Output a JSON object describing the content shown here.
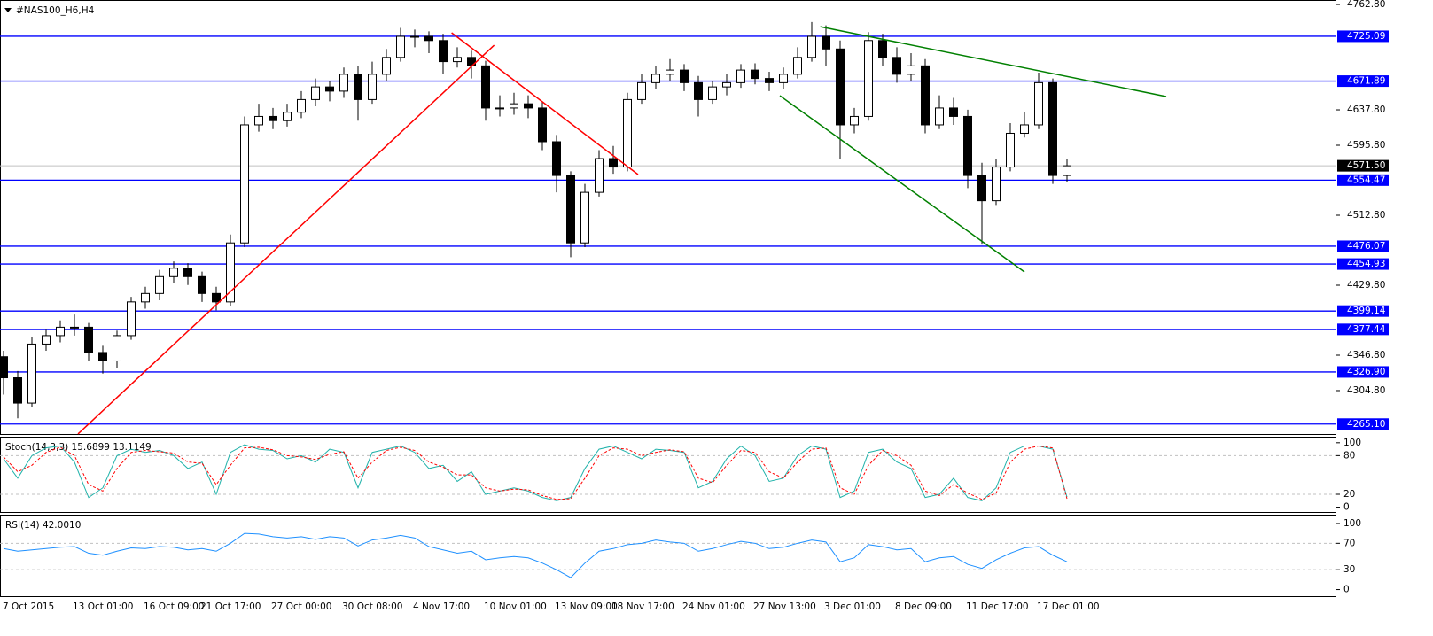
{
  "chart_data": [
    {
      "type": "candlestick",
      "title": "#NAS100_H6,H4",
      "categories": [
        "7 Oct 2015",
        null,
        null,
        null,
        null,
        "13 Oct 01:00",
        null,
        null,
        null,
        null,
        "16 Oct 09:00",
        null,
        null,
        null,
        "21 Oct 17:00",
        null,
        null,
        null,
        null,
        "27 Oct 00:00",
        null,
        null,
        null,
        null,
        "30 Oct 08:00",
        null,
        null,
        null,
        null,
        "4 Nov 17:00",
        null,
        null,
        null,
        null,
        "10 Nov 01:00",
        null,
        null,
        null,
        null,
        "13 Nov 09:00",
        null,
        null,
        null,
        "18 Nov 17:00",
        null,
        null,
        null,
        null,
        "24 Nov 01:00",
        null,
        null,
        null,
        null,
        "27 Nov 13:00",
        null,
        null,
        null,
        null,
        "3 Dec 01:00",
        null,
        null,
        null,
        null,
        "8 Dec 09:00",
        null,
        null,
        null,
        null,
        "11 Dec 17:00",
        null,
        null,
        null,
        null,
        "17 Dec 01:00",
        null,
        null
      ],
      "open": [
        4345,
        4320,
        4290,
        4360,
        4370,
        4380,
        4380,
        4350,
        4340,
        4370,
        4410,
        4420,
        4440,
        4450,
        4440,
        4420,
        4410,
        4480,
        4620,
        4630,
        4625,
        4635,
        4650,
        4665,
        4660,
        4680,
        4650,
        4680,
        4700,
        4725,
        4725,
        4720,
        4695,
        4700,
        4690,
        4640,
        4640,
        4645,
        4640,
        4600,
        4560,
        4480,
        4540,
        4580,
        4570,
        4650,
        4670,
        4680,
        4685,
        4670,
        4650,
        4665,
        4670,
        4685,
        4675,
        4670,
        4680,
        4700,
        4725,
        4710,
        4620,
        4630,
        4720,
        4700,
        4680,
        4690,
        4620,
        4640,
        4630,
        4560,
        4530,
        4570,
        4610,
        4620,
        4670,
        4560
      ],
      "high": [
        4352,
        4328,
        4368,
        4378,
        4388,
        4395,
        4385,
        4358,
        4376,
        4416,
        4428,
        4448,
        4458,
        4456,
        4446,
        4428,
        4490,
        4630,
        4645,
        4640,
        4645,
        4660,
        4675,
        4672,
        4688,
        4690,
        4695,
        4710,
        4735,
        4733,
        4731,
        4728,
        4712,
        4708,
        4696,
        4655,
        4658,
        4655,
        4648,
        4608,
        4565,
        4550,
        4590,
        4595,
        4658,
        4680,
        4690,
        4698,
        4692,
        4678,
        4672,
        4680,
        4692,
        4693,
        4683,
        4688,
        4712,
        4742,
        4738,
        4720,
        4640,
        4730,
        4728,
        4712,
        4705,
        4698,
        4655,
        4652,
        4638,
        4575,
        4580,
        4622,
        4635,
        4682,
        4675,
        4580
      ],
      "low": [
        4300,
        4272,
        4285,
        4352,
        4362,
        4370,
        4340,
        4325,
        4332,
        4365,
        4402,
        4412,
        4432,
        4430,
        4410,
        4400,
        4405,
        4475,
        4612,
        4615,
        4618,
        4628,
        4642,
        4648,
        4652,
        4625,
        4645,
        4672,
        4695,
        4712,
        4705,
        4680,
        4688,
        4675,
        4625,
        4630,
        4632,
        4628,
        4590,
        4540,
        4463,
        4475,
        4535,
        4562,
        4565,
        4645,
        4662,
        4672,
        4660,
        4630,
        4645,
        4655,
        4664,
        4668,
        4660,
        4662,
        4675,
        4695,
        4690,
        4580,
        4610,
        4625,
        4690,
        4670,
        4672,
        4610,
        4615,
        4620,
        4545,
        4478,
        4525,
        4565,
        4605,
        4615,
        4550,
        4552
      ],
      "close": [
        4320,
        4290,
        4360,
        4370,
        4380,
        4380,
        4350,
        4340,
        4370,
        4410,
        4420,
        4440,
        4450,
        4440,
        4420,
        4410,
        4480,
        4620,
        4630,
        4625,
        4635,
        4650,
        4665,
        4660,
        4680,
        4650,
        4680,
        4700,
        4725,
        4725,
        4720,
        4695,
        4700,
        4690,
        4640,
        4640,
        4645,
        4640,
        4600,
        4560,
        4480,
        4540,
        4580,
        4570,
        4650,
        4670,
        4680,
        4685,
        4670,
        4650,
        4665,
        4670,
        4685,
        4675,
        4670,
        4680,
        4700,
        4725,
        4710,
        4620,
        4630,
        4720,
        4700,
        4680,
        4690,
        4620,
        4640,
        4630,
        4560,
        4530,
        4570,
        4610,
        4620,
        4670,
        4560,
        4571.5
      ],
      "ylim": [
        4253.3,
        4768.1
      ],
      "yticks": [
        {
          "value": 4762.8,
          "label": "4762.80"
        },
        {
          "value": 4637.8,
          "label": "4637.80"
        },
        {
          "value": 4595.8,
          "label": "4595.80"
        },
        {
          "value": 4512.8,
          "label": "4512.80"
        },
        {
          "value": 4429.8,
          "label": "4429.80"
        },
        {
          "value": 4346.8,
          "label": "4346.80"
        },
        {
          "value": 4304.8,
          "label": "4304.80"
        }
      ],
      "levels": [
        {
          "value": 4725.09,
          "label": "4725.09"
        },
        {
          "value": 4671.89,
          "label": "4671.89"
        },
        {
          "value": 4554.47,
          "label": "4554.47"
        },
        {
          "value": 4476.07,
          "label": "4476.07"
        },
        {
          "value": 4454.93,
          "label": "4454.93"
        },
        {
          "value": 4399.14,
          "label": "4399.14"
        },
        {
          "value": 4377.44,
          "label": "4377.44"
        },
        {
          "value": 4326.9,
          "label": "4326.90"
        },
        {
          "value": 4265.1,
          "label": "4265.10"
        }
      ],
      "level_color": "#0000ff",
      "current_price": {
        "value": 4571.5,
        "label": "4571.50"
      },
      "trendlines": [
        {
          "color": "#ff0000",
          "x": [
            5.25,
            34.6
          ],
          "y": [
            4253.4,
            4714.5
          ]
        },
        {
          "color": "#ff0000",
          "x": [
            31.6,
            44.75
          ],
          "y": [
            4729.2,
            4561.1
          ]
        },
        {
          "color": "#008000",
          "x": [
            57.6,
            82
          ],
          "y": [
            4736.5,
            4653.6
          ]
        },
        {
          "color": "#008000",
          "x": [
            54.75,
            72
          ],
          "y": [
            4654.6,
            4445.6
          ]
        }
      ]
    },
    {
      "type": "line",
      "title": "Stoch(14,3,3) 15.6899 13.1149",
      "series": [
        {
          "color": "#20b2aa",
          "style": "solid",
          "values": [
            75,
            45,
            80,
            92,
            95,
            70,
            15,
            30,
            80,
            90,
            85,
            88,
            80,
            60,
            70,
            20,
            85,
            97,
            90,
            88,
            75,
            80,
            70,
            90,
            85,
            30,
            85,
            90,
            95,
            85,
            60,
            65,
            40,
            55,
            20,
            25,
            30,
            25,
            15,
            10,
            15,
            60,
            90,
            95,
            85,
            75,
            90,
            88,
            85,
            30,
            40,
            75,
            95,
            80,
            40,
            45,
            80,
            95,
            90,
            15,
            25,
            85,
            90,
            70,
            60,
            15,
            20,
            45,
            15,
            10,
            30,
            85,
            95,
            95,
            90,
            15.6899
          ]
        },
        {
          "color": "#ff0000",
          "style": "dashed",
          "values": [
            78,
            55,
            65,
            85,
            93,
            80,
            35,
            25,
            60,
            85,
            88,
            86,
            84,
            70,
            68,
            35,
            65,
            92,
            93,
            89,
            80,
            78,
            74,
            82,
            86,
            45,
            70,
            88,
            93,
            88,
            70,
            62,
            50,
            50,
            30,
            25,
            28,
            27,
            18,
            12,
            13,
            45,
            80,
            92,
            90,
            80,
            85,
            89,
            86,
            45,
            38,
            65,
            88,
            85,
            55,
            45,
            70,
            90,
            92,
            30,
            20,
            65,
            88,
            80,
            65,
            25,
            18,
            35,
            22,
            12,
            22,
            70,
            90,
            95,
            92,
            13.1149
          ]
        }
      ],
      "ylim": [
        -7.5,
        108
      ],
      "yticks": [
        0,
        20,
        80,
        100
      ],
      "levels": [
        20,
        80
      ]
    },
    {
      "type": "line",
      "title": "RSI(14) 42.0010",
      "series": [
        {
          "color": "#1e90ff",
          "style": "solid",
          "values": [
            62,
            58,
            60,
            62,
            64,
            65,
            55,
            52,
            58,
            63,
            62,
            65,
            64,
            60,
            62,
            58,
            70,
            85,
            84,
            80,
            78,
            80,
            76,
            80,
            78,
            66,
            75,
            78,
            82,
            78,
            65,
            60,
            55,
            58,
            45,
            48,
            50,
            48,
            40,
            30,
            18,
            40,
            58,
            62,
            68,
            70,
            75,
            72,
            70,
            58,
            62,
            68,
            73,
            70,
            62,
            64,
            70,
            75,
            72,
            42,
            48,
            68,
            65,
            60,
            62,
            42,
            48,
            50,
            38,
            32,
            45,
            55,
            63,
            65,
            52,
            42.001
          ]
        }
      ],
      "ylim": [
        -10,
        112
      ],
      "yticks": [
        0,
        30,
        70,
        100
      ],
      "levels": [
        30,
        70
      ]
    }
  ]
}
